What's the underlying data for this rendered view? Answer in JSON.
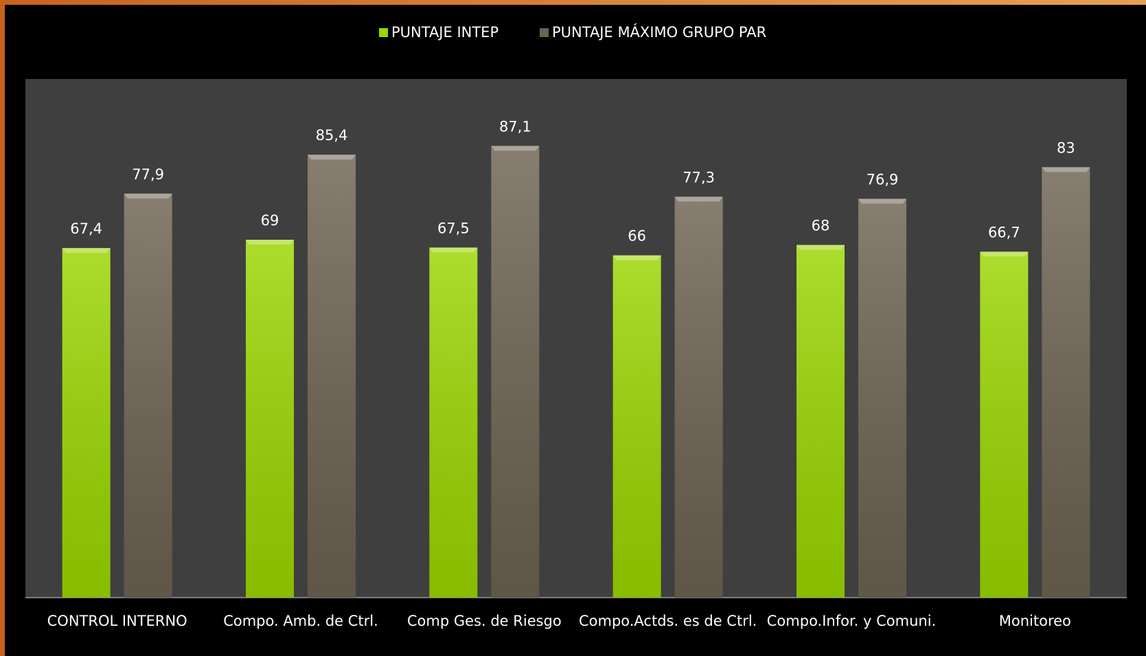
{
  "chart_data": {
    "type": "bar",
    "categories": [
      "CONTROL INTERNO",
      "Compo. Amb. de Ctrl.",
      "Comp Ges. de Riesgo",
      "Compo.Actds. es de Ctrl.",
      "Compo.Infor. y Comuni.",
      "Monitoreo"
    ],
    "series": [
      {
        "name": "PUNTAJE INTEP",
        "color": "#9ad600",
        "values": [
          67.4,
          69,
          67.5,
          66,
          68,
          66.7
        ],
        "value_labels": [
          "67,4",
          "69",
          "67,5",
          "66",
          "68",
          "66,7"
        ]
      },
      {
        "name": "PUNTAJE MÁXIMO GRUPO PAR",
        "color": "#6d6252",
        "values": [
          77.9,
          85.4,
          87.1,
          77.3,
          76.9,
          83
        ],
        "value_labels": [
          "77,9",
          "85,4",
          "87,1",
          "77,3",
          "76,9",
          "83"
        ]
      }
    ],
    "ylim": [
      0,
      100
    ],
    "legend": "top"
  }
}
